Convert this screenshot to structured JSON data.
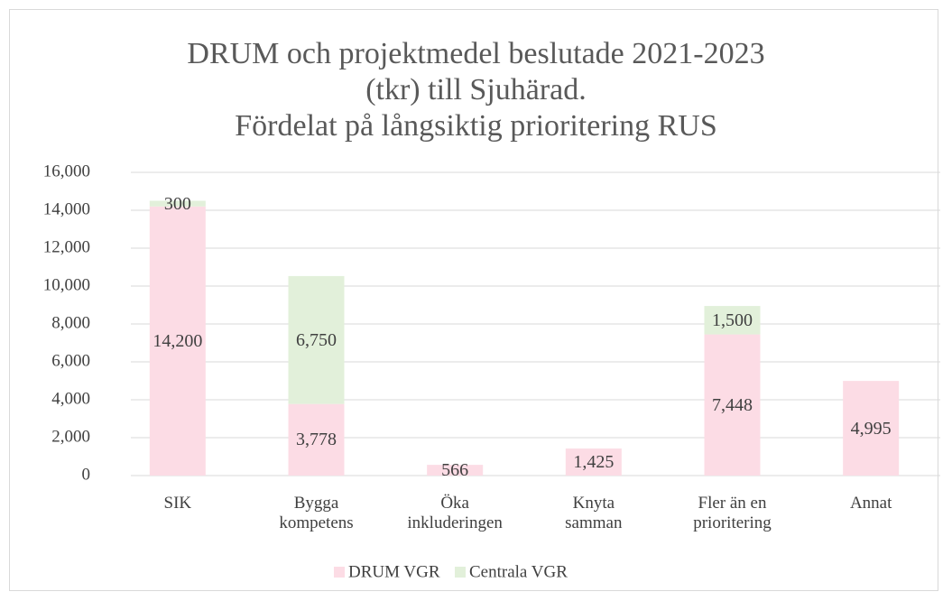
{
  "chart_data": {
    "type": "stacked_bar",
    "title": "DRUM och projektmedel beslutade 2021-2023\n(tkr) till Sjuhärad.\nFördelat på långsiktig prioritering RUS",
    "categories": [
      "SIK",
      "Bygga\nkompetens",
      "Öka\ninkluderingen",
      "Knyta\nsamman",
      "Fler än en\nprioritering",
      "Annat"
    ],
    "series": [
      {
        "name": "DRUM VGR",
        "color": "#fcdce5",
        "values": [
          14200,
          3778,
          566,
          1425,
          7448,
          4995
        ],
        "value_labels": [
          "14,200",
          "3,778",
          "566",
          "1,425",
          "7,448",
          "4,995"
        ]
      },
      {
        "name": "Centrala VGR",
        "color": "#e2f0da",
        "values": [
          300,
          6750,
          null,
          null,
          1500,
          null
        ],
        "value_labels": [
          "300",
          "6,750",
          null,
          null,
          "1,500",
          null
        ]
      }
    ],
    "ylim": [
      0,
      16000
    ],
    "yticks": [
      0,
      {
        "value": 2000,
        "label": "2,000"
      },
      {
        "value": 4000,
        "label": "4,000"
      },
      {
        "value": 6000,
        "label": "6,000"
      },
      {
        "value": 8000,
        "label": "8,000"
      },
      {
        "value": 10000,
        "label": "10,000"
      },
      {
        "value": 12000,
        "label": "12,000"
      },
      {
        "value": 14000,
        "label": "14,000"
      },
      {
        "value": 16000,
        "label": "16,000"
      }
    ],
    "grid": true,
    "legend": "bottom"
  }
}
